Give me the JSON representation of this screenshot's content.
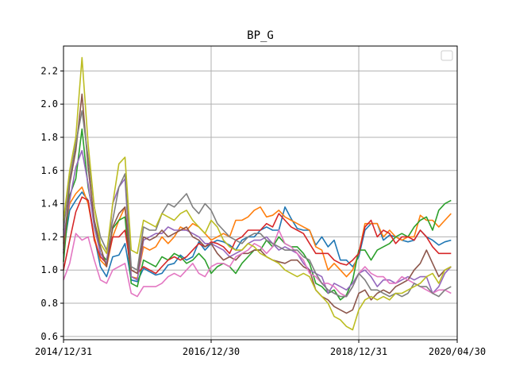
{
  "chart_data": {
    "type": "line",
    "title": "BP_G",
    "xlabel": "",
    "ylabel": "",
    "ylim": [
      0.58,
      2.35
    ],
    "yticks": [
      0.6,
      0.8,
      1.0,
      1.2,
      1.4,
      1.6,
      1.8,
      2.0,
      2.2
    ],
    "ytick_labels": [
      "0.6",
      "0.8",
      "1.0",
      "1.2",
      "1.4",
      "1.6",
      "1.8",
      "2.0",
      "2.2"
    ],
    "xlim": [
      0,
      64
    ],
    "xticks": [
      0,
      24,
      48,
      64
    ],
    "xtick_labels": [
      "2014/12/31",
      "2016/12/30",
      "2018/12/31",
      "2020/04/30"
    ],
    "grid": true,
    "legend": {
      "position": "upper right",
      "entries": []
    },
    "colors": [
      "#1f77b4",
      "#ff7f0e",
      "#2ca02c",
      "#d62728",
      "#9467bd",
      "#8c564b",
      "#e377c2",
      "#7f7f7f",
      "#bcbd22"
    ],
    "series": [
      {
        "color": "#1f77b4",
        "values": [
          1.12,
          1.36,
          1.42,
          1.47,
          1.42,
          1.2,
          1.02,
          0.96,
          1.08,
          1.09,
          1.16,
          0.94,
          0.93,
          1.01,
          0.99,
          0.97,
          0.98,
          1.03,
          1.04,
          1.09,
          1.06,
          1.08,
          1.17,
          1.12,
          1.16,
          1.18,
          1.17,
          1.15,
          1.12,
          1.18,
          1.2,
          1.2,
          1.24,
          1.26,
          1.24,
          1.24,
          1.38,
          1.31,
          1.25,
          1.24,
          1.24,
          1.15,
          1.2,
          1.14,
          1.18,
          1.06,
          1.06,
          1.02,
          1.08,
          1.24,
          1.28,
          1.28,
          1.18,
          1.21,
          1.2,
          1.18,
          1.17,
          1.18,
          1.24,
          1.2,
          1.18,
          1.15,
          1.17,
          1.18
        ]
      },
      {
        "color": "#ff7f0e",
        "values": [
          1.16,
          1.4,
          1.46,
          1.5,
          1.4,
          1.2,
          1.06,
          1.02,
          1.2,
          1.3,
          1.38,
          0.96,
          0.95,
          1.14,
          1.12,
          1.14,
          1.2,
          1.16,
          1.2,
          1.26,
          1.24,
          1.28,
          1.26,
          1.22,
          1.18,
          1.2,
          1.22,
          1.2,
          1.3,
          1.3,
          1.32,
          1.36,
          1.38,
          1.32,
          1.33,
          1.36,
          1.32,
          1.3,
          1.28,
          1.26,
          1.24,
          1.14,
          1.12,
          1.0,
          1.04,
          1.0,
          0.96,
          1.0,
          1.1,
          1.28,
          1.28,
          1.28,
          1.2,
          1.24,
          1.2,
          1.18,
          1.2,
          1.2,
          1.33,
          1.3,
          1.3,
          1.26,
          1.3,
          1.34
        ]
      },
      {
        "color": "#2ca02c",
        "values": [
          1.05,
          1.45,
          1.55,
          1.85,
          1.5,
          1.3,
          1.1,
          1.06,
          1.25,
          1.3,
          1.32,
          0.92,
          0.9,
          1.06,
          1.04,
          1.02,
          1.08,
          1.06,
          1.1,
          1.08,
          1.04,
          1.06,
          1.1,
          1.06,
          0.98,
          1.02,
          1.04,
          1.02,
          0.98,
          1.04,
          1.08,
          1.12,
          1.12,
          1.18,
          1.14,
          1.2,
          1.16,
          1.14,
          1.14,
          1.1,
          1.04,
          0.92,
          0.9,
          0.86,
          0.88,
          0.82,
          0.85,
          0.94,
          1.12,
          1.12,
          1.06,
          1.12,
          1.14,
          1.16,
          1.2,
          1.22,
          1.2,
          1.26,
          1.3,
          1.32,
          1.24,
          1.36,
          1.4,
          1.42
        ]
      },
      {
        "color": "#d62728",
        "values": [
          1.0,
          1.18,
          1.35,
          1.44,
          1.42,
          1.18,
          1.08,
          1.04,
          1.2,
          1.2,
          1.24,
          1.0,
          0.98,
          1.02,
          1.0,
          0.98,
          1.02,
          1.06,
          1.08,
          1.06,
          1.08,
          1.12,
          1.16,
          1.14,
          1.17,
          1.16,
          1.14,
          1.1,
          1.18,
          1.2,
          1.24,
          1.24,
          1.24,
          1.28,
          1.26,
          1.34,
          1.3,
          1.26,
          1.24,
          1.22,
          1.16,
          1.1,
          1.1,
          1.1,
          1.06,
          1.04,
          1.03,
          1.06,
          1.1,
          1.26,
          1.3,
          1.2,
          1.24,
          1.22,
          1.16,
          1.2,
          1.2,
          1.18,
          1.24,
          1.2,
          1.14,
          1.1,
          1.1,
          1.1
        ]
      },
      {
        "color": "#9467bd",
        "values": [
          1.2,
          1.42,
          1.62,
          1.72,
          1.52,
          1.26,
          1.1,
          1.04,
          1.4,
          1.5,
          1.55,
          0.96,
          0.94,
          1.18,
          1.2,
          1.22,
          1.22,
          1.26,
          1.24,
          1.24,
          1.24,
          1.22,
          1.2,
          1.16,
          1.16,
          1.14,
          1.12,
          1.08,
          1.1,
          1.12,
          1.16,
          1.18,
          1.18,
          1.2,
          1.16,
          1.12,
          1.14,
          1.12,
          1.1,
          1.04,
          1.0,
          0.98,
          0.96,
          0.86,
          0.92,
          0.9,
          0.88,
          0.92,
          0.98,
          1.0,
          0.96,
          0.9,
          0.94,
          0.94,
          0.92,
          0.94,
          0.96,
          0.94,
          0.96,
          0.96,
          0.86,
          0.9,
          0.98,
          1.02
        ]
      },
      {
        "color": "#8c564b",
        "values": [
          1.1,
          1.52,
          1.72,
          2.06,
          1.62,
          1.3,
          1.14,
          1.02,
          1.26,
          1.34,
          1.38,
          1.0,
          0.98,
          1.2,
          1.18,
          1.2,
          1.24,
          1.2,
          1.22,
          1.24,
          1.26,
          1.2,
          1.18,
          1.14,
          1.16,
          1.1,
          1.06,
          1.08,
          1.06,
          1.1,
          1.1,
          1.12,
          1.12,
          1.08,
          1.06,
          1.05,
          1.04,
          1.06,
          1.06,
          1.02,
          1.0,
          0.88,
          0.84,
          0.82,
          0.78,
          0.76,
          0.74,
          0.76,
          0.86,
          0.88,
          0.82,
          0.86,
          0.88,
          0.86,
          0.9,
          0.92,
          0.94,
          1.0,
          1.04,
          1.12,
          1.04,
          0.96,
          1.0,
          1.02
        ]
      },
      {
        "color": "#e377c2",
        "values": [
          0.94,
          1.04,
          1.22,
          1.18,
          1.2,
          1.06,
          0.94,
          0.92,
          1.0,
          1.02,
          1.04,
          0.86,
          0.84,
          0.9,
          0.9,
          0.9,
          0.92,
          0.96,
          0.98,
          0.96,
          1.0,
          1.04,
          0.98,
          0.96,
          1.02,
          1.04,
          1.04,
          1.02,
          1.08,
          1.1,
          1.12,
          1.16,
          1.14,
          1.1,
          1.14,
          1.24,
          1.16,
          1.14,
          1.1,
          1.06,
          0.98,
          0.96,
          0.92,
          0.92,
          0.9,
          0.86,
          0.84,
          0.9,
          0.98,
          1.02,
          0.98,
          0.96,
          0.96,
          0.92,
          0.92,
          0.96,
          0.94,
          0.92,
          0.9,
          0.88,
          0.86,
          0.88,
          0.88,
          0.86
        ]
      },
      {
        "color": "#7f7f7f",
        "values": [
          1.24,
          1.55,
          1.76,
          1.96,
          1.68,
          1.38,
          1.2,
          1.12,
          1.3,
          1.5,
          1.58,
          1.02,
          1.0,
          1.26,
          1.24,
          1.24,
          1.34,
          1.4,
          1.38,
          1.42,
          1.46,
          1.38,
          1.34,
          1.4,
          1.36,
          1.28,
          1.24,
          1.2,
          1.18,
          1.16,
          1.2,
          1.22,
          1.22,
          1.18,
          1.16,
          1.14,
          1.12,
          1.12,
          1.12,
          1.08,
          1.06,
          0.98,
          0.92,
          0.88,
          0.86,
          0.84,
          0.84,
          0.9,
          0.98,
          0.94,
          0.88,
          0.88,
          0.86,
          0.84,
          0.86,
          0.84,
          0.86,
          0.92,
          0.9,
          0.9,
          0.86,
          0.84,
          0.88,
          0.9
        ]
      },
      {
        "color": "#bcbd22",
        "values": [
          1.3,
          1.6,
          1.8,
          2.28,
          1.76,
          1.38,
          1.16,
          1.1,
          1.4,
          1.64,
          1.68,
          1.12,
          1.1,
          1.3,
          1.28,
          1.26,
          1.34,
          1.32,
          1.3,
          1.34,
          1.36,
          1.3,
          1.26,
          1.22,
          1.3,
          1.26,
          1.18,
          1.14,
          1.12,
          1.12,
          1.16,
          1.14,
          1.1,
          1.08,
          1.06,
          1.04,
          1.0,
          0.98,
          0.96,
          0.98,
          0.96,
          0.88,
          0.84,
          0.8,
          0.72,
          0.7,
          0.66,
          0.64,
          0.76,
          0.82,
          0.84,
          0.82,
          0.84,
          0.82,
          0.86,
          0.86,
          0.88,
          0.9,
          0.92,
          0.96,
          0.98,
          0.92,
          1.0,
          1.02
        ]
      }
    ]
  }
}
